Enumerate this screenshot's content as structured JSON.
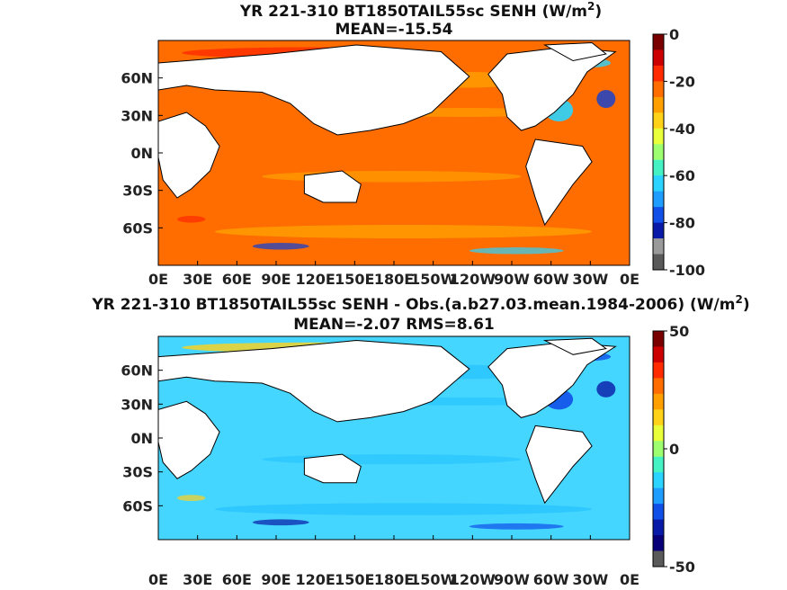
{
  "chart_data": [
    {
      "type": "heatmap",
      "title": "YR 221-310 BT1850TAIL55sc  SENH (W/m",
      "title_sup": "2",
      "title_end": ")",
      "subtitle": "MEAN=-15.54",
      "x_ticks": [
        "0E",
        "30E",
        "60E",
        "90E",
        "120E",
        "150E",
        "180E",
        "150W",
        "120W",
        "90W",
        "60W",
        "30W",
        "0E"
      ],
      "y_ticks": [
        "60N",
        "30N",
        "0N",
        "30S",
        "60S"
      ],
      "colorbar": {
        "min": -100,
        "max": 0,
        "ticks": [
          "0",
          "-20",
          "-40",
          "-60",
          "-80",
          "-100"
        ]
      },
      "colors": {
        "background": "#ff6d00",
        "band": "#ff9f00",
        "warm": "#ff2a00",
        "cool": "#2ad4ff",
        "deep": "#0b3fd6"
      }
    },
    {
      "type": "heatmap",
      "title": "YR 221-310 BT1850TAIL55sc SENH - Obs.(a.b27.03.mean.1984-2006) (W/m",
      "title_sup": "2",
      "title_end": ")",
      "subtitle": "MEAN=-2.07 RMS=8.61",
      "x_ticks": [
        "0E",
        "30E",
        "60E",
        "90E",
        "120E",
        "150E",
        "180E",
        "150W",
        "120W",
        "90W",
        "60W",
        "30W",
        "0E"
      ],
      "y_ticks": [
        "60N",
        "30N",
        "0N",
        "30S",
        "60S"
      ],
      "colorbar": {
        "min": -50,
        "max": 50,
        "ticks": [
          "50",
          "0",
          "-50"
        ]
      },
      "colors": {
        "background": "#45d6ff",
        "band": "#28c4ff",
        "warm": "#ffd21a",
        "cool": "#1050e8",
        "deep": "#0a1aa8"
      }
    }
  ]
}
